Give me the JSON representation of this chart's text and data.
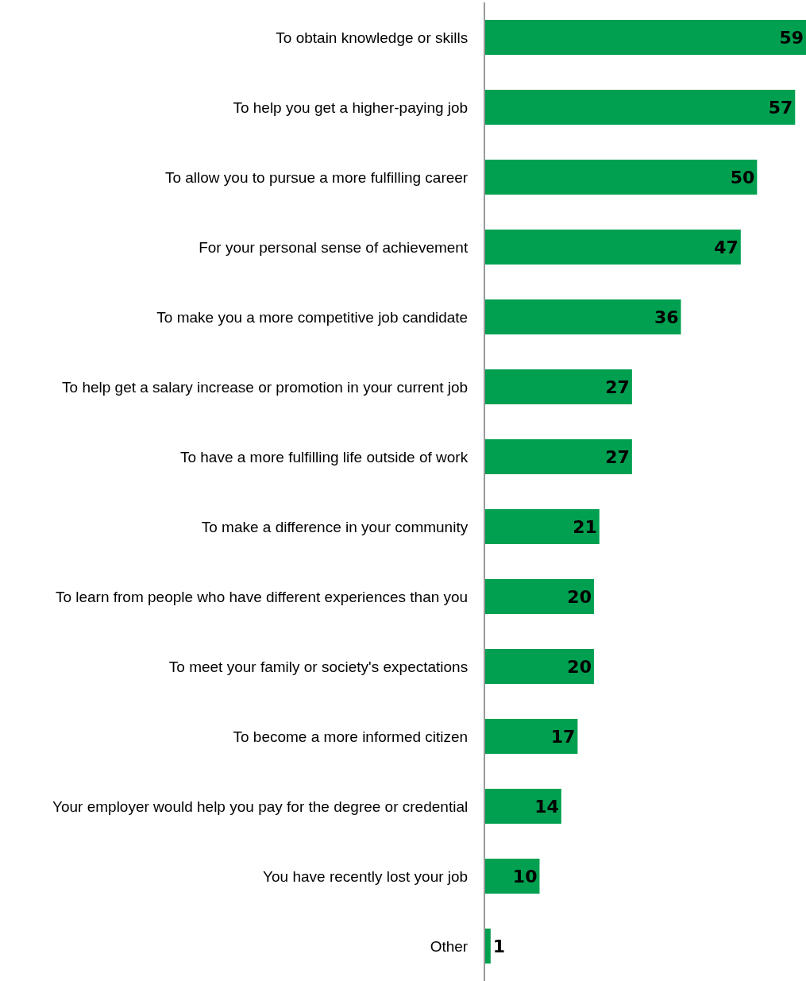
{
  "chart_data": {
    "type": "bar",
    "orientation": "horizontal",
    "categories": [
      "To obtain knowledge or skills",
      "To help you get a higher-paying job",
      "To allow you to pursue a more fulfilling career",
      "For your personal sense of achievement",
      "To make you a more competitive job candidate",
      "To help get a salary increase or promotion in your current job",
      "To have a more fulfilling life outside of work",
      "To make a difference in your community",
      "To learn from people who have different experiences than you",
      "To meet your family or society's expectations",
      "To become a more informed citizen",
      "Your employer would help you pay for the degree or credential",
      "You have recently lost your job",
      "Other"
    ],
    "values": [
      59,
      57,
      50,
      47,
      36,
      27,
      27,
      21,
      20,
      20,
      17,
      14,
      10,
      1
    ],
    "color": "#00a050",
    "xlim": [
      0,
      59
    ],
    "data_labels": true,
    "tick_labels": "y"
  }
}
